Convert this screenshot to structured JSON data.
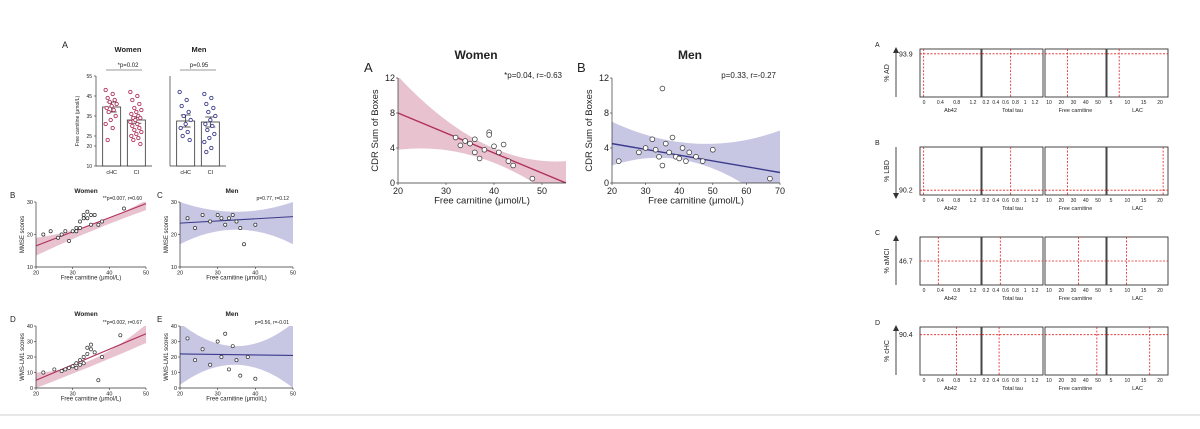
{
  "colors": {
    "women": "#b0325a",
    "women_fill": "#e2b3c2",
    "men": "#3a3a8c",
    "men_fill": "#b9b8dc",
    "dashed": "#e02020",
    "axis": "#333333",
    "text": "#222222",
    "footer_line": "#cfcfcf"
  },
  "chart_data": [
    {
      "id": "bar-women",
      "type": "bar",
      "panel_letter": "A",
      "title": "Women",
      "annotation": "*p=0.02",
      "ylabel": "Free carnitine (μmol/L)",
      "ylim": [
        10,
        55
      ],
      "yticks": [
        10,
        20,
        25,
        35,
        45,
        55
      ],
      "categories": [
        "cHC",
        "CI"
      ],
      "values": [
        39.5,
        33.0
      ],
      "errors": [
        2.5,
        1.6
      ],
      "points": [
        [
          48,
          46,
          44,
          43,
          42,
          41,
          40,
          39,
          38,
          37,
          35,
          33,
          31,
          29,
          23
        ],
        [
          47,
          45,
          43,
          41,
          39,
          38,
          37,
          36,
          35,
          34,
          34,
          33,
          32,
          31,
          30,
          29,
          28,
          27,
          26,
          25,
          24,
          23,
          21
        ]
      ]
    },
    {
      "id": "bar-men",
      "type": "bar",
      "title": "Men",
      "annotation": "p=0.95",
      "ylim": [
        10,
        55
      ],
      "categories": [
        "cHC",
        "CI"
      ],
      "values": [
        32.5,
        32.0
      ],
      "errors": [
        3.0,
        2.5
      ],
      "points": [
        [
          47,
          43,
          40,
          37,
          35,
          33,
          31,
          29,
          27,
          25,
          23
        ],
        [
          46,
          44,
          41,
          39,
          37,
          35,
          33,
          31,
          30,
          28,
          26,
          24,
          22,
          19,
          17
        ]
      ]
    },
    {
      "id": "mmse-women",
      "type": "scatter",
      "panel_letter": "B",
      "title": "Women",
      "annotation": "**p=0.007, r=0.60",
      "xlabel": "Free carnitine (μmol/L)",
      "ylabel": "MMSE scores",
      "xlim": [
        20,
        50
      ],
      "ylim": [
        10,
        30
      ],
      "xticks": [
        20,
        30,
        40,
        50
      ],
      "yticks": [
        10,
        20,
        30
      ],
      "x": [
        22,
        24,
        26,
        27,
        28,
        29,
        30,
        31,
        31,
        32,
        32,
        33,
        33,
        34,
        34,
        35,
        35,
        36,
        37,
        38,
        44
      ],
      "y": [
        20,
        21,
        19,
        20,
        21,
        18,
        21,
        21,
        22,
        22,
        24,
        26,
        25,
        27,
        25,
        26,
        23,
        26,
        23,
        24,
        28
      ],
      "fit": [
        16.5,
        29.5
      ],
      "ci_upper": [
        19,
        23,
        30.5
      ],
      "ci_lower": [
        13.5,
        21,
        27.5
      ]
    },
    {
      "id": "mmse-men",
      "type": "scatter",
      "panel_letter": "C",
      "title": "Men",
      "annotation": "p=0.77, r=0.12",
      "xlabel": "Free carnitine (μmol/L)",
      "ylabel": "MMSE scores",
      "xlim": [
        20,
        50
      ],
      "ylim": [
        10,
        30
      ],
      "xticks": [
        20,
        30,
        40,
        50
      ],
      "yticks": [
        10,
        20,
        30
      ],
      "x": [
        22,
        24,
        26,
        28,
        30,
        31,
        32,
        33,
        34,
        35,
        36,
        37,
        40
      ],
      "y": [
        25,
        22,
        26,
        24,
        26,
        25,
        23,
        25,
        26,
        24,
        22,
        17,
        23
      ],
      "fit": [
        23.5,
        25.5
      ],
      "ci_upper": [
        30,
        27,
        30
      ],
      "ci_lower": [
        17,
        21.5,
        17
      ]
    },
    {
      "id": "wms-women",
      "type": "scatter",
      "panel_letter": "D",
      "title": "Women",
      "annotation": "**p=0.002, r=0.67",
      "xlabel": "Free carnitine (μmol/L)",
      "ylabel": "WMS-LM1 scores",
      "xlim": [
        20,
        50
      ],
      "ylim": [
        0,
        40
      ],
      "xticks": [
        20,
        30,
        40,
        50
      ],
      "yticks": [
        0,
        10,
        20,
        30,
        40
      ],
      "x": [
        22,
        25,
        27,
        28,
        29,
        30,
        31,
        31,
        32,
        32,
        33,
        33,
        34,
        34,
        35,
        35,
        36,
        37,
        38,
        43
      ],
      "y": [
        10,
        12,
        11,
        12,
        13,
        14,
        13,
        16,
        15,
        18,
        16,
        20,
        22,
        26,
        25,
        28,
        23,
        5,
        20,
        34
      ],
      "fit": [
        5,
        35
      ],
      "ci_upper": [
        10,
        18,
        41
      ],
      "ci_lower": [
        0,
        14,
        29
      ]
    },
    {
      "id": "wms-men",
      "type": "scatter",
      "panel_letter": "E",
      "title": "Men",
      "annotation": "p=0.56, r=-0.01",
      "xlabel": "Free carnitine (μmol/L)",
      "ylabel": "WMS-LM1 scores",
      "xlim": [
        20,
        50
      ],
      "ylim": [
        0,
        40
      ],
      "xticks": [
        20,
        30,
        40,
        50
      ],
      "yticks": [
        0,
        10,
        20,
        30,
        40
      ],
      "x": [
        22,
        24,
        26,
        28,
        30,
        31,
        32,
        33,
        34,
        35,
        36,
        38,
        40
      ],
      "y": [
        32,
        18,
        25,
        15,
        30,
        20,
        35,
        12,
        27,
        18,
        8,
        20,
        6
      ],
      "fit": [
        22,
        21
      ],
      "ci_upper": [
        42,
        27,
        42
      ],
      "ci_lower": [
        2,
        15,
        0
      ]
    },
    {
      "id": "cdr-women",
      "type": "scatter",
      "panel_letter": "A",
      "title": "Women",
      "annotation": "*p=0.04, r=-0.63",
      "xlabel": "Free carnitine (μmol/L)",
      "ylabel": "CDR Sum of Boxes",
      "xlim": [
        20,
        55
      ],
      "ylim": [
        0,
        12
      ],
      "xticks": [
        20,
        30,
        40,
        50
      ],
      "yticks": [
        0,
        4,
        8,
        12
      ],
      "x": [
        32,
        33,
        34,
        35,
        36,
        36,
        37,
        38,
        39,
        39,
        40,
        41,
        42,
        43,
        44,
        48
      ],
      "y": [
        5.2,
        4.3,
        4.8,
        4.5,
        3.5,
        5.0,
        2.8,
        3.8,
        5.8,
        5.5,
        4.2,
        3.5,
        4.4,
        2.5,
        2.0,
        0.5
      ],
      "fit": [
        8,
        0
      ],
      "ci_upper": [
        12.2,
        4.6,
        2.5
      ],
      "ci_lower": [
        3.8,
        2.8,
        -2.5
      ]
    },
    {
      "id": "cdr-men",
      "type": "scatter",
      "panel_letter": "B",
      "title": "Men",
      "annotation": "p=0.33, r=-0.27",
      "xlabel": "Free carnitine (μmol/L)",
      "ylabel": "CDR Sum of Boxes",
      "xlim": [
        20,
        70
      ],
      "ylim": [
        0,
        12
      ],
      "xticks": [
        20,
        30,
        40,
        50,
        60,
        70
      ],
      "yticks": [
        0,
        4,
        8,
        12
      ],
      "x": [
        22,
        28,
        30,
        32,
        33,
        34,
        35,
        35,
        36,
        37,
        38,
        39,
        40,
        41,
        42,
        43,
        45,
        47,
        50,
        67
      ],
      "y": [
        2.5,
        3.5,
        4.0,
        5.0,
        3.8,
        3.0,
        10.8,
        2.0,
        4.5,
        3.5,
        5.2,
        3.0,
        2.8,
        4.0,
        2.5,
        3.5,
        3.0,
        2.5,
        3.8,
        0.5
      ],
      "fit": [
        4.5,
        1.2
      ],
      "ci_upper": [
        7.0,
        4.5,
        6.0
      ],
      "ci_lower": [
        2.0,
        2.3,
        -3.2
      ]
    },
    {
      "id": "profile",
      "type": "line",
      "panel_letters": [
        "A",
        "B",
        "C",
        "D"
      ],
      "rows": [
        {
          "label": "% AD",
          "value": "93.9"
        },
        {
          "label": "% LBD",
          "value": "90.2"
        },
        {
          "label": "% aMCI",
          "value": "46.7"
        },
        {
          "label": "% cHC",
          "value": "90.4"
        }
      ],
      "columns": [
        {
          "label": "Ab42",
          "ticks": [
            "0",
            "0.4",
            "0.8",
            "1.2"
          ]
        },
        {
          "label": "Total tau",
          "ticks": [
            "0.2",
            "0.4",
            "0.6",
            "0.8",
            "1",
            "1.2"
          ]
        },
        {
          "label": "Free carnitine",
          "ticks": [
            "10",
            "20",
            "30",
            "40",
            "50"
          ]
        },
        {
          "label": "LAC",
          "ticks": [
            "5",
            "10",
            "15",
            "20"
          ]
        }
      ]
    }
  ]
}
